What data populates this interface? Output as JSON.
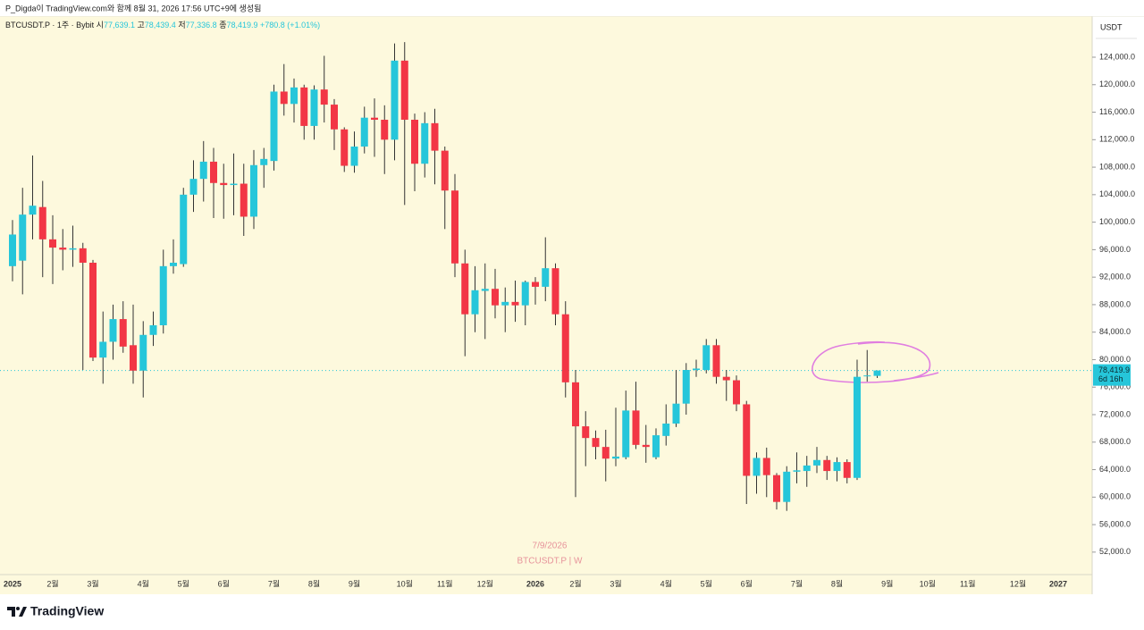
{
  "chart_data": {
    "type": "candlestick",
    "title": "P_Digda이 TradingView.com와 함께 8월 31, 2026 17:56 UTC+9에 생성됨",
    "symbol": "BTCUSDT.P · 1주 · Bybit",
    "ohlc_legend": [
      {
        "label": "시",
        "text": "77,639.1"
      },
      {
        "label": "고",
        "text": "78,439.4"
      },
      {
        "label": "저",
        "text": "77,336.8"
      },
      {
        "label": "종",
        "text": "78,419.9"
      }
    ],
    "change": "+780.8 (+1.01%)",
    "currency": "USDT",
    "last_price": {
      "value": 78419.9,
      "label": "78,419.9"
    },
    "countdown": "6d 16h",
    "watermark_date": "7/9/2026",
    "watermark_symbol": "BTCUSDT.P | W",
    "brand": "TradingView",
    "up_color": "#26c6da",
    "down_color": "#f23645",
    "grid": false,
    "categories": [
      "2025",
      null,
      null,
      null,
      "2월",
      null,
      null,
      null,
      "3월",
      null,
      null,
      null,
      null,
      "4월",
      null,
      null,
      null,
      "5월",
      null,
      null,
      null,
      "6월",
      null,
      null,
      null,
      null,
      "7월",
      null,
      null,
      null,
      "8월",
      null,
      null,
      null,
      "9월",
      null,
      null,
      null,
      null,
      "10월",
      null,
      null,
      null,
      "11월",
      null,
      null,
      null,
      "12월",
      null,
      null,
      null,
      null,
      "2026",
      null,
      null,
      null,
      "2월",
      null,
      null,
      null,
      "3월",
      null,
      null,
      null,
      null,
      "4월",
      null,
      null,
      null,
      "5월",
      null,
      null,
      null,
      "6월",
      null,
      null,
      null,
      null,
      "7월",
      null,
      null,
      null,
      "8월",
      null,
      null,
      null,
      null,
      "9월",
      null,
      null,
      null,
      "10월",
      null,
      null,
      null,
      "11월",
      null,
      null,
      null,
      null,
      "12월",
      null,
      null,
      null,
      "2027"
    ],
    "open": [
      93600,
      94400,
      101100,
      102200,
      97500,
      96300,
      96000,
      96200,
      94100,
      80300,
      82600,
      85900,
      82100,
      78400,
      83600,
      85000,
      93600,
      93900,
      104000,
      106300,
      108800,
      105700,
      105400,
      105600,
      100800,
      108300,
      108900,
      119000,
      117200,
      119600,
      114000,
      119300,
      117100,
      113500,
      108200,
      111000,
      115200,
      114900,
      112000,
      123500,
      114900,
      108500,
      114400,
      110400,
      104600,
      94000,
      86600,
      90000,
      90300,
      87900,
      88400,
      87900,
      91300,
      90600,
      93300,
      86600,
      76700,
      70300,
      68600,
      67300,
      65600,
      65800,
      72600,
      67600,
      65800,
      68900,
      70700,
      73600,
      78500,
      78500,
      82100,
      77500,
      77000,
      73500,
      63100,
      65700,
      63200,
      59300,
      63700,
      63800,
      64600,
      65400,
      63800,
      65100,
      62800,
      77600,
      77639.1,
      null,
      null,
      null,
      null,
      null,
      null,
      null,
      null,
      null,
      null,
      null,
      null,
      null,
      null,
      null,
      null,
      null,
      null
    ],
    "high": [
      100300,
      105000,
      109700,
      106000,
      101000,
      99000,
      99500,
      97000,
      94500,
      87000,
      88000,
      88500,
      88000,
      85600,
      87000,
      96000,
      97500,
      105000,
      109000,
      111800,
      110800,
      108500,
      110000,
      108500,
      110500,
      110800,
      120000,
      123000,
      120900,
      120000,
      119900,
      124200,
      117900,
      113800,
      113200,
      116800,
      118000,
      117000,
      126000,
      126200,
      115800,
      116000,
      116500,
      111000,
      107000,
      96000,
      93600,
      94000,
      93200,
      90500,
      91500,
      91500,
      92000,
      97800,
      94000,
      88500,
      78500,
      72500,
      69700,
      69800,
      73000,
      75500,
      76800,
      70500,
      70000,
      73500,
      78500,
      79500,
      80000,
      83000,
      83000,
      78500,
      77700,
      74000,
      66500,
      67200,
      63500,
      64500,
      66500,
      66000,
      67300,
      66000,
      65800,
      65500,
      80000,
      81400,
      78439.4,
      null,
      null,
      null,
      null,
      null,
      null,
      null,
      null,
      null,
      null,
      null,
      null,
      null,
      null,
      null,
      null,
      null,
      null
    ],
    "low": [
      91400,
      89500,
      97500,
      92000,
      91000,
      93000,
      93500,
      78500,
      79800,
      76500,
      80000,
      81000,
      76500,
      74500,
      82000,
      83800,
      92500,
      93500,
      101500,
      103000,
      100600,
      100500,
      101000,
      98000,
      99000,
      105000,
      107500,
      115500,
      114500,
      112000,
      112000,
      114500,
      110500,
      107300,
      107200,
      110000,
      109500,
      107000,
      109000,
      102500,
      104500,
      106500,
      105500,
      99000,
      92000,
      80500,
      84000,
      83000,
      86000,
      84000,
      85500,
      85000,
      88000,
      88500,
      85000,
      74500,
      60000,
      64500,
      65500,
      62300,
      64500,
      65500,
      67000,
      65000,
      65500,
      67500,
      70200,
      72000,
      77500,
      78000,
      76500,
      74000,
      72500,
      59000,
      60500,
      60000,
      58200,
      58000,
      62000,
      61500,
      63500,
      62500,
      62300,
      62000,
      62500,
      76800,
      77336.8,
      null,
      null,
      null,
      null,
      null,
      null,
      null,
      null,
      null,
      null,
      null,
      null,
      null,
      null,
      null,
      null,
      null,
      null
    ],
    "close": [
      98200,
      101100,
      102400,
      97500,
      96300,
      96000,
      96200,
      94100,
      80300,
      82600,
      85900,
      81900,
      78400,
      83600,
      85000,
      93600,
      94100,
      104000,
      106300,
      108800,
      105700,
      105400,
      105600,
      100800,
      108300,
      109200,
      119000,
      117200,
      119600,
      114000,
      119300,
      117100,
      113500,
      108200,
      111000,
      115200,
      114900,
      112000,
      123500,
      114900,
      108500,
      114400,
      110400,
      104600,
      94000,
      86600,
      90100,
      90300,
      87900,
      88400,
      87900,
      91300,
      90600,
      93300,
      86600,
      76700,
      70300,
      68600,
      67300,
      65600,
      65900,
      72600,
      67600,
      67300,
      69000,
      70700,
      73600,
      78500,
      78700,
      82100,
      77500,
      77000,
      73500,
      63100,
      65700,
      63200,
      59300,
      63700,
      63900,
      64600,
      65400,
      63800,
      65100,
      62800,
      77500,
      77700,
      78419.9,
      null,
      null,
      null,
      null,
      null,
      null,
      null,
      null,
      null,
      null,
      null,
      null,
      null,
      null,
      null,
      null,
      null,
      null
    ],
    "ylim": [
      48730,
      129980
    ],
    "yticks": [
      {
        "value": 52000,
        "label": "52,000.0"
      },
      {
        "value": 56000,
        "label": "56,000.0"
      },
      {
        "value": 60000,
        "label": "60,000.0"
      },
      {
        "value": 64000,
        "label": "64,000.0"
      },
      {
        "value": 68000,
        "label": "68,000.0"
      },
      {
        "value": 72000,
        "label": "72,000.0"
      },
      {
        "value": 76000,
        "label": "76,000.0"
      },
      {
        "value": 80000,
        "label": "80,000.0"
      },
      {
        "value": 84000,
        "label": "84,000.0"
      },
      {
        "value": 88000,
        "label": "88,000.0"
      },
      {
        "value": 92000,
        "label": "92,000.0"
      },
      {
        "value": 96000,
        "label": "96,000.0"
      },
      {
        "value": 100000,
        "label": "100,000.0"
      },
      {
        "value": 104000,
        "label": "104,000.0"
      },
      {
        "value": 108000,
        "label": "108,000.0"
      },
      {
        "value": 112000,
        "label": "112,000.0"
      },
      {
        "value": 116000,
        "label": "116,000.0"
      },
      {
        "value": 120000,
        "label": "120,000.0"
      },
      {
        "value": 124000,
        "label": "124,000.0"
      }
    ]
  }
}
